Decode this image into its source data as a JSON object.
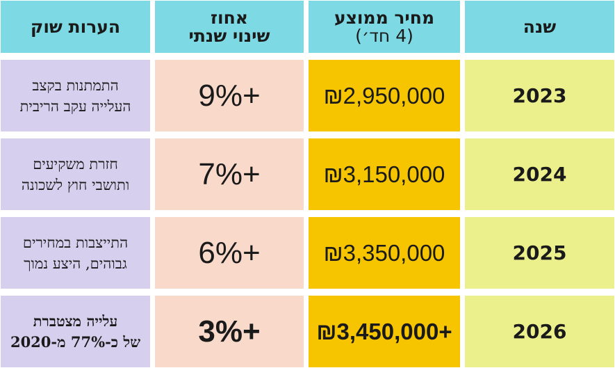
{
  "table": {
    "header": [
      [
        "שנה"
      ],
      [
        "מחיר ממוצע",
        "(4 חד׳)"
      ],
      [
        "אחוז",
        "שינוי שנתי"
      ],
      [
        "הערות שוק"
      ]
    ],
    "rows": [
      {
        "year": "2023",
        "price": "₪2,950,000",
        "change": "9%+",
        "notes": [
          "התמתנות בקצב",
          "העלייה עקב הריבית"
        ]
      },
      {
        "year": "2024",
        "price": "₪3,150,000",
        "change": "7%+",
        "notes": [
          "חזרת משקיעים",
          "ותושבי חוץ לשכונה"
        ]
      },
      {
        "year": "2025",
        "price": "₪3,350,000",
        "change": "6%+",
        "notes": [
          "התייצבות במחירים",
          "גבוהים, היצע נמוך"
        ]
      },
      {
        "year": "2026",
        "price": "₪3,450,000+",
        "change": "3%+",
        "notes": [
          "עלייה מצטברת",
          "של כ-77% מ-2020"
        ]
      }
    ]
  }
}
